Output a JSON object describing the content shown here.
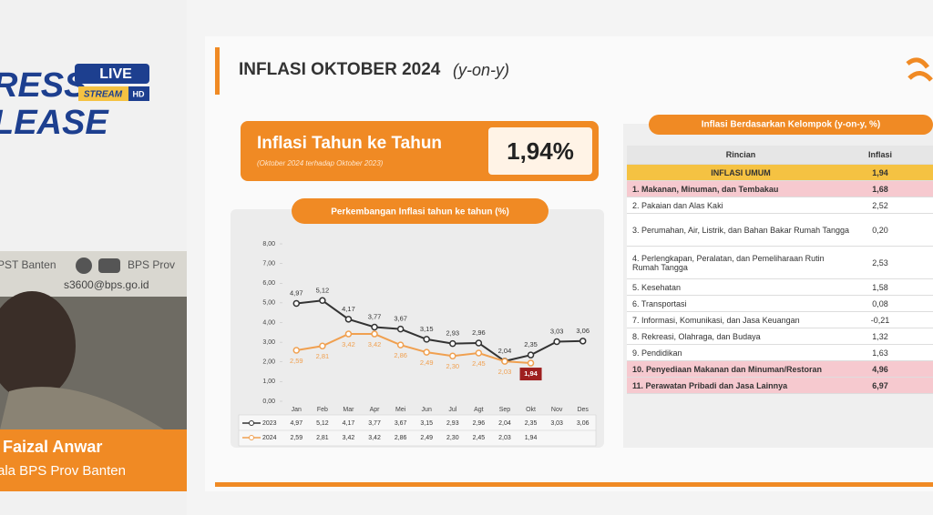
{
  "stream": {
    "brand_top": "RESS",
    "brand_bottom": "LEASE",
    "badge_live": "LIVE",
    "badge_stream": "STREAM",
    "badge_hd": "HD",
    "social_left": "PST Banten",
    "social_right": "BPS Prov",
    "email": "s3600@bps.go.id",
    "presenter_name": "Faizal Anwar",
    "presenter_role": "ala BPS Prov Banten"
  },
  "slide": {
    "title": "INFLASI OKTOBER 2024",
    "title_suffix": "(y-on-y)"
  },
  "banner": {
    "title": "Inflasi Tahun ke Tahun",
    "subtitle": "(Oktober 2024 terhadap Oktober 2023)",
    "value": "1,94%"
  },
  "chart_data": {
    "type": "line",
    "title": "Perkembangan Inflasi tahun ke tahun (%)",
    "categories": [
      "Jan",
      "Feb",
      "Mar",
      "Apr",
      "Mei",
      "Jun",
      "Jul",
      "Agt",
      "Sep",
      "Okt",
      "Nov",
      "Des"
    ],
    "series": [
      {
        "name": "2023",
        "color": "#333333",
        "values": [
          4.97,
          5.12,
          4.17,
          3.77,
          3.67,
          3.15,
          2.93,
          2.96,
          2.04,
          2.35,
          3.03,
          3.06
        ],
        "value_labels": [
          "4,97",
          "5,12",
          "4,17",
          "3,77",
          "3,67",
          "3,15",
          "2,93",
          "2,96",
          "2,04",
          "2,35",
          "3,03",
          "3,06"
        ]
      },
      {
        "name": "2024",
        "color": "#f0a050",
        "values": [
          2.59,
          2.81,
          3.42,
          3.42,
          2.86,
          2.49,
          2.3,
          2.45,
          2.03,
          1.94,
          null,
          null
        ],
        "value_labels": [
          "2,59",
          "2,81",
          "3,42",
          "3,42",
          "2,86",
          "2,49",
          "2,30",
          "2,45",
          "2,03",
          "1,94",
          null,
          null
        ]
      }
    ],
    "ylim": [
      0,
      8
    ],
    "yticks": [
      {
        "value": 0,
        "label": "0,00"
      },
      {
        "value": 1,
        "label": "1,00"
      },
      {
        "value": 2,
        "label": "2,00"
      },
      {
        "value": 3,
        "label": "3,00"
      },
      {
        "value": 4,
        "label": "4,00"
      },
      {
        "value": 5,
        "label": "5,00"
      },
      {
        "value": 6,
        "label": "6,00"
      },
      {
        "value": 7,
        "label": "7,00"
      },
      {
        "value": 8,
        "label": "8,00"
      }
    ],
    "grid": false
  },
  "table": {
    "title": "Inflasi Berdasarkan Kelompok (y-on-y, %)",
    "header": [
      "Rincian",
      "Inflasi"
    ],
    "rows": [
      {
        "label": "INFLASI UMUM",
        "value": "1,94",
        "color": "#f5c242"
      },
      {
        "label": "1. Makanan, Minuman, dan Tembakau",
        "value": "1,68",
        "color": "#f6c9cf"
      },
      {
        "label": "2. Pakaian dan Alas Kaki",
        "value": "2,52"
      },
      {
        "label": "3. Perumahan, Air, Listrik, dan Bahan Bakar Rumah Tangga",
        "value": "0,20"
      },
      {
        "label": "4. Perlengkapan, Peralatan, dan Pemeliharaan Rutin Rumah Tangga",
        "value": "2,53"
      },
      {
        "label": "5. Kesehatan",
        "value": "1,58"
      },
      {
        "label": "6. Transportasi",
        "value": "0,08"
      },
      {
        "label": "7. Informasi, Komunikasi, dan Jasa Keuangan",
        "value": "-0,21"
      },
      {
        "label": "8. Rekreasi, Olahraga, dan Budaya",
        "value": "1,32"
      },
      {
        "label": "9. Pendidikan",
        "value": "1,63"
      },
      {
        "label": "10. Penyediaan Makanan dan Minuman/Restoran",
        "value": "4,96",
        "color": "#f6c9cf"
      },
      {
        "label": "11. Perawatan Pribadi dan Jasa Lainnya",
        "value": "6,97",
        "color": "#f6c9cf"
      }
    ]
  }
}
